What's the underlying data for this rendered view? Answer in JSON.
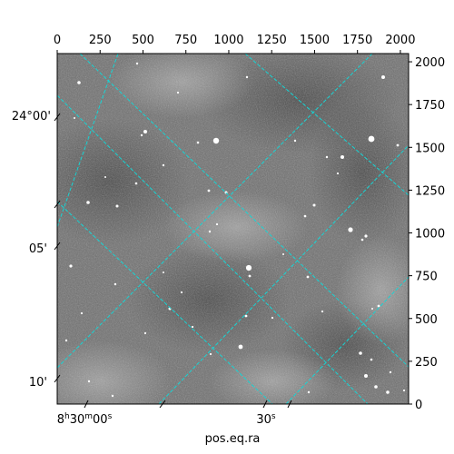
{
  "figure": {
    "xlabel": "pos.eq.ra",
    "top_x_ticks": [
      "0",
      "250",
      "500",
      "750",
      "1000",
      "1250",
      "1500",
      "1750",
      "2000"
    ],
    "right_y_ticks": [
      "0",
      "250",
      "500",
      "750",
      "1000",
      "1250",
      "1500",
      "1750",
      "2000"
    ],
    "left_ticks": [
      "24°00'",
      "05'",
      "10'"
    ],
    "bottom_ticks": [
      "8h30m00s",
      "30s"
    ],
    "grid_color": "#17d4d4",
    "image": "grayscale-star-field"
  }
}
